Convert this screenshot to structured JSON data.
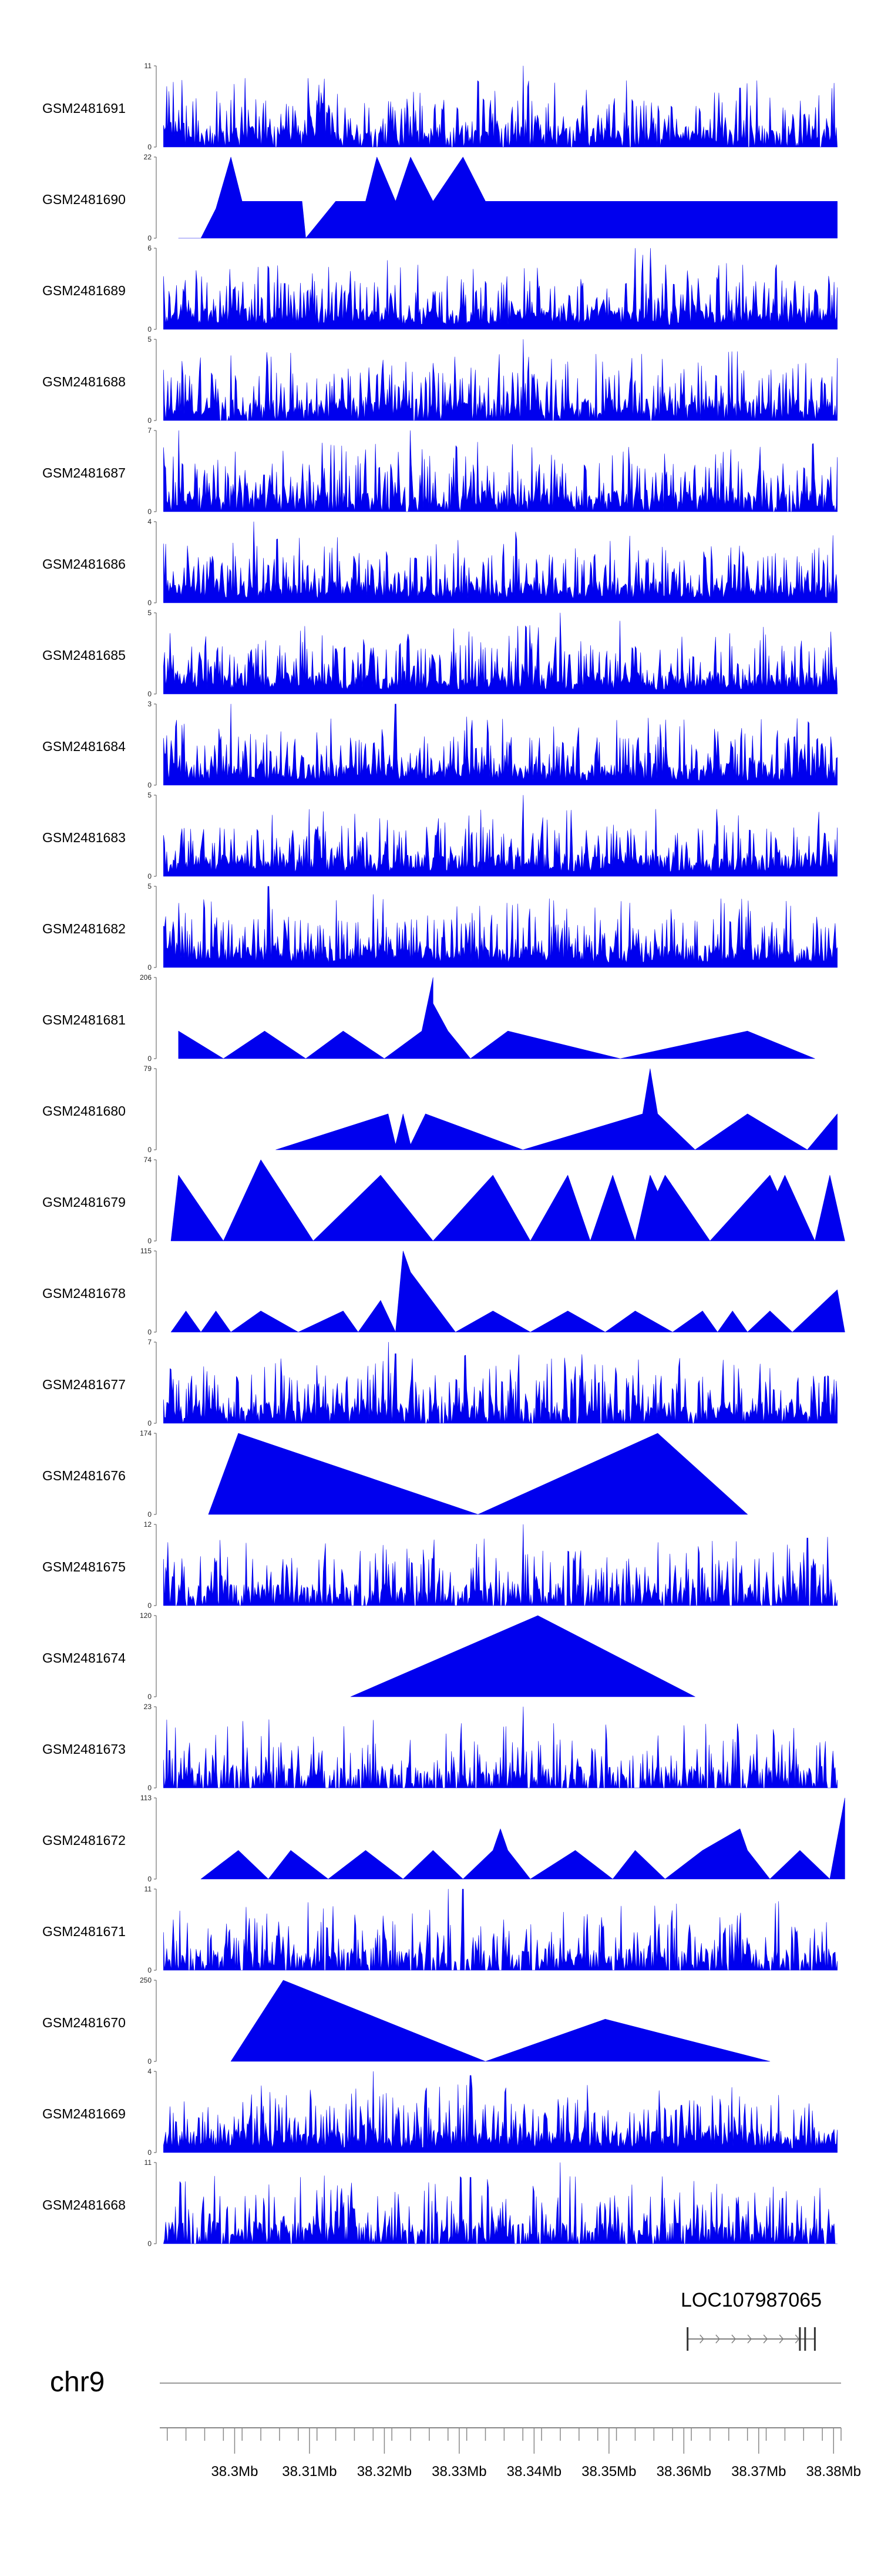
{
  "chart_data": {
    "type": "area",
    "chromosome": "chr9",
    "x_range_mb": [
      38.29,
      38.381
    ],
    "x_ticks": [
      {
        "value": 38.3,
        "label": "38.3Mb"
      },
      {
        "value": 38.31,
        "label": "38.31Mb"
      },
      {
        "value": 38.32,
        "label": "38.32Mb"
      },
      {
        "value": 38.33,
        "label": "38.33Mb"
      },
      {
        "value": 38.34,
        "label": "38.34Mb"
      },
      {
        "value": 38.35,
        "label": "38.35Mb"
      },
      {
        "value": 38.36,
        "label": "38.36Mb"
      },
      {
        "value": 38.37,
        "label": "38.37Mb"
      },
      {
        "value": 38.38,
        "label": "38.38Mb"
      }
    ],
    "gene": {
      "name": "LOC107987065",
      "start_mb": 38.3605,
      "end_mb": 38.3775,
      "exons_mb": [
        38.3605,
        38.3755,
        38.3762,
        38.3775
      ],
      "strand": "+"
    },
    "colors": {
      "signal": "#0000ee",
      "axis": "#555555"
    },
    "tracks": [
      {
        "name": "GSM2481691",
        "ymax": 11,
        "mode": "dense",
        "density": 0.9,
        "seed": 1,
        "peaks": [
          [
            38.3385,
            11
          ],
          [
            38.3675,
            8
          ]
        ]
      },
      {
        "name": "GSM2481690",
        "ymax": 22,
        "mode": "sparse",
        "seed": 2,
        "points": [
          [
            38.2925,
            0
          ],
          [
            38.2955,
            0
          ],
          [
            38.2975,
            8
          ],
          [
            38.2995,
            22
          ],
          [
            38.301,
            10
          ],
          [
            38.3025,
            10
          ],
          [
            38.304,
            10
          ],
          [
            38.3055,
            10
          ],
          [
            38.307,
            10
          ],
          [
            38.309,
            10
          ],
          [
            38.3095,
            0
          ],
          [
            38.3135,
            10
          ],
          [
            38.3175,
            10
          ],
          [
            38.319,
            22
          ],
          [
            38.3215,
            10
          ],
          [
            38.3235,
            22
          ],
          [
            38.3265,
            10
          ],
          [
            38.3305,
            22
          ],
          [
            38.3335,
            10
          ],
          [
            38.338,
            10
          ],
          [
            38.3425,
            10
          ],
          [
            38.3475,
            10
          ],
          [
            38.3515,
            10
          ],
          [
            38.3555,
            10
          ],
          [
            38.3595,
            10
          ],
          [
            38.3635,
            10
          ],
          [
            38.3685,
            10
          ],
          [
            38.3725,
            10
          ],
          [
            38.3765,
            10
          ],
          [
            38.3805,
            10
          ]
        ]
      },
      {
        "name": "GSM2481689",
        "ymax": 6,
        "mode": "dense",
        "density": 1.0,
        "seed": 3,
        "peaks": [
          [
            38.3535,
            6
          ],
          [
            38.3545,
            5.5
          ],
          [
            38.3555,
            6
          ]
        ]
      },
      {
        "name": "GSM2481688",
        "ymax": 5,
        "mode": "dense",
        "density": 0.9,
        "seed": 4,
        "peaks": [
          [
            38.3385,
            5
          ],
          [
            38.2995,
            4
          ]
        ]
      },
      {
        "name": "GSM2481687",
        "ymax": 7,
        "mode": "dense",
        "density": 0.9,
        "seed": 5,
        "peaks": [
          [
            38.3235,
            7
          ],
          [
            38.3325,
            6
          ],
          [
            38.2925,
            7
          ]
        ]
      },
      {
        "name": "GSM2481686",
        "ymax": 4,
        "mode": "dense",
        "density": 1.0,
        "seed": 6,
        "peaks": [
          [
            38.3025,
            4
          ],
          [
            38.3375,
            3.5
          ]
        ]
      },
      {
        "name": "GSM2481685",
        "ymax": 5,
        "mode": "dense",
        "density": 1.0,
        "seed": 7,
        "peaks": [
          [
            38.3435,
            5
          ],
          [
            38.3515,
            4.5
          ]
        ]
      },
      {
        "name": "GSM2481684",
        "ymax": 3,
        "mode": "dense",
        "density": 1.0,
        "seed": 8,
        "peaks": [
          [
            38.2995,
            3
          ],
          [
            38.3215,
            3
          ]
        ]
      },
      {
        "name": "GSM2481683",
        "ymax": 5,
        "mode": "dense",
        "density": 1.0,
        "seed": 9,
        "peaks": [
          [
            38.3385,
            5
          ]
        ]
      },
      {
        "name": "GSM2481682",
        "ymax": 5,
        "mode": "dense",
        "density": 1.0,
        "seed": 10,
        "peaks": [
          [
            38.3045,
            5
          ],
          [
            38.3185,
            4.5
          ]
        ]
      },
      {
        "name": "GSM2481681",
        "ymax": 206,
        "mode": "sparse",
        "seed": 11,
        "points": [
          [
            38.2925,
            70
          ],
          [
            38.2985,
            0
          ],
          [
            38.304,
            70
          ],
          [
            38.3095,
            0
          ],
          [
            38.3145,
            70
          ],
          [
            38.32,
            0
          ],
          [
            38.325,
            70
          ],
          [
            38.3265,
            206
          ],
          [
            38.3265,
            140
          ],
          [
            38.3285,
            70
          ],
          [
            38.3315,
            0
          ],
          [
            38.3365,
            70
          ],
          [
            38.3515,
            0
          ],
          [
            38.3685,
            70
          ],
          [
            38.3775,
            0
          ]
        ]
      },
      {
        "name": "GSM2481680",
        "ymax": 79,
        "mode": "sparse",
        "seed": 12,
        "points": [
          [
            38.3055,
            0
          ],
          [
            38.3205,
            35
          ],
          [
            38.3215,
            5
          ],
          [
            38.3225,
            35
          ],
          [
            38.3235,
            5
          ],
          [
            38.3255,
            35
          ],
          [
            38.3385,
            0
          ],
          [
            38.3545,
            35
          ],
          [
            38.3555,
            79
          ],
          [
            38.3565,
            35
          ],
          [
            38.3615,
            0
          ],
          [
            38.3685,
            35
          ],
          [
            38.3765,
            0
          ],
          [
            38.3805,
            35
          ],
          [
            38.3805,
            0
          ]
        ]
      },
      {
        "name": "GSM2481679",
        "ymax": 74,
        "mode": "sparse",
        "seed": 13,
        "points": [
          [
            38.2915,
            0
          ],
          [
            38.2925,
            60
          ],
          [
            38.2985,
            0
          ],
          [
            38.3035,
            74
          ],
          [
            38.3105,
            0
          ],
          [
            38.3195,
            60
          ],
          [
            38.3265,
            0
          ],
          [
            38.3345,
            60
          ],
          [
            38.3395,
            0
          ],
          [
            38.3445,
            60
          ],
          [
            38.3475,
            0
          ],
          [
            38.3505,
            60
          ],
          [
            38.3535,
            0
          ],
          [
            38.3555,
            60
          ],
          [
            38.3565,
            45
          ],
          [
            38.3575,
            60
          ],
          [
            38.3635,
            0
          ],
          [
            38.3715,
            60
          ],
          [
            38.3725,
            45
          ],
          [
            38.3735,
            60
          ],
          [
            38.3775,
            0
          ],
          [
            38.3795,
            60
          ],
          [
            38.3815,
            0
          ]
        ]
      },
      {
        "name": "GSM2481678",
        "ymax": 115,
        "mode": "sparse",
        "seed": 14,
        "points": [
          [
            38.2915,
            0
          ],
          [
            38.2935,
            30
          ],
          [
            38.2955,
            0
          ],
          [
            38.2975,
            30
          ],
          [
            38.2995,
            0
          ],
          [
            38.3035,
            30
          ],
          [
            38.3085,
            0
          ],
          [
            38.3145,
            30
          ],
          [
            38.3165,
            0
          ],
          [
            38.3195,
            45
          ],
          [
            38.3215,
            0
          ],
          [
            38.3225,
            115
          ],
          [
            38.3235,
            85
          ],
          [
            38.3295,
            0
          ],
          [
            38.3345,
            30
          ],
          [
            38.3395,
            0
          ],
          [
            38.3445,
            30
          ],
          [
            38.3495,
            0
          ],
          [
            38.3535,
            30
          ],
          [
            38.3585,
            0
          ],
          [
            38.3625,
            30
          ],
          [
            38.3645,
            0
          ],
          [
            38.3665,
            30
          ],
          [
            38.3685,
            0
          ],
          [
            38.3715,
            30
          ],
          [
            38.3745,
            0
          ],
          [
            38.3775,
            30
          ],
          [
            38.3805,
            60
          ],
          [
            38.3815,
            0
          ]
        ]
      },
      {
        "name": "GSM2481677",
        "ymax": 7,
        "mode": "dense",
        "density": 0.9,
        "seed": 15,
        "peaks": [
          [
            38.3205,
            7
          ],
          [
            38.3215,
            6
          ]
        ]
      },
      {
        "name": "GSM2481676",
        "ymax": 174,
        "mode": "sparse",
        "seed": 16,
        "points": [
          [
            38.2965,
            0
          ],
          [
            38.3005,
            174
          ],
          [
            38.3325,
            0
          ],
          [
            38.3565,
            174
          ],
          [
            38.3685,
            0
          ]
        ]
      },
      {
        "name": "GSM2481675",
        "ymax": 12,
        "mode": "dense",
        "density": 0.8,
        "seed": 17,
        "peaks": [
          [
            38.3385,
            12
          ],
          [
            38.3765,
            10
          ]
        ]
      },
      {
        "name": "GSM2481674",
        "ymax": 120,
        "mode": "sparse",
        "seed": 18,
        "points": [
          [
            38.3155,
            0
          ],
          [
            38.3405,
            120
          ],
          [
            38.3615,
            0
          ]
        ]
      },
      {
        "name": "GSM2481673",
        "ymax": 23,
        "mode": "dense",
        "density": 0.7,
        "seed": 19,
        "peaks": [
          [
            38.3385,
            23
          ]
        ]
      },
      {
        "name": "GSM2481672",
        "ymax": 113,
        "mode": "sparse",
        "seed": 20,
        "points": [
          [
            38.2955,
            0
          ],
          [
            38.3005,
            40
          ],
          [
            38.3045,
            0
          ],
          [
            38.3075,
            40
          ],
          [
            38.3125,
            0
          ],
          [
            38.3175,
            40
          ],
          [
            38.3225,
            0
          ],
          [
            38.3265,
            40
          ],
          [
            38.3305,
            0
          ],
          [
            38.3345,
            40
          ],
          [
            38.3355,
            70
          ],
          [
            38.3365,
            40
          ],
          [
            38.3395,
            0
          ],
          [
            38.3455,
            40
          ],
          [
            38.3505,
            0
          ],
          [
            38.3535,
            40
          ],
          [
            38.3575,
            0
          ],
          [
            38.3625,
            40
          ],
          [
            38.3675,
            70
          ],
          [
            38.3685,
            40
          ],
          [
            38.3715,
            0
          ],
          [
            38.3755,
            40
          ],
          [
            38.3795,
            0
          ],
          [
            38.3815,
            113
          ],
          [
            38.3815,
            0
          ]
        ]
      },
      {
        "name": "GSM2481671",
        "ymax": 11,
        "mode": "dense",
        "density": 0.75,
        "seed": 21,
        "peaks": [
          [
            38.3285,
            11
          ],
          [
            38.3305,
            11
          ]
        ]
      },
      {
        "name": "GSM2481670",
        "ymax": 250,
        "mode": "sparse",
        "seed": 22,
        "points": [
          [
            38.2995,
            0
          ],
          [
            38.3065,
            250
          ],
          [
            38.3335,
            0
          ],
          [
            38.3495,
            130
          ],
          [
            38.3715,
            0
          ]
        ]
      },
      {
        "name": "GSM2481669",
        "ymax": 4,
        "mode": "dense",
        "density": 1.0,
        "seed": 23,
        "peaks": [
          [
            38.3185,
            4
          ],
          [
            38.3315,
            3.8
          ]
        ]
      },
      {
        "name": "GSM2481668",
        "ymax": 11,
        "mode": "dense",
        "density": 0.8,
        "seed": 24,
        "peaks": [
          [
            38.3435,
            11
          ],
          [
            38.3315,
            9
          ]
        ]
      }
    ]
  }
}
